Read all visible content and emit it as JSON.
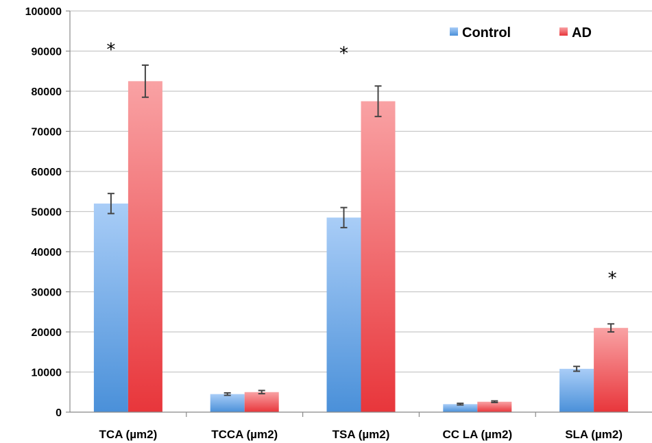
{
  "chart_data": {
    "type": "bar",
    "title": "",
    "xlabel": "",
    "ylabel": "",
    "ylim": [
      0,
      100000
    ],
    "yticks": [
      0,
      10000,
      20000,
      30000,
      40000,
      50000,
      60000,
      70000,
      80000,
      90000,
      100000
    ],
    "yticklabels": [
      "0",
      "10000",
      "20000",
      "30000",
      "40000",
      "50000",
      "60000",
      "70000",
      "80000",
      "90000",
      "100000"
    ],
    "grid": "horizontal",
    "legend": "top-right",
    "categories": [
      "TCA (µm2)",
      "TCCA (µm2)",
      "TSA (µm2)",
      "CC LA (µm2)",
      "SLA (µm2)"
    ],
    "series": [
      {
        "name": "Control",
        "color": "#4a90d9",
        "color_light": "#a9cdf7",
        "values": [
          52000,
          4500,
          48500,
          2000,
          10800
        ],
        "errors": [
          2500,
          300,
          2500,
          200,
          600
        ]
      },
      {
        "name": "AD",
        "color": "#e8363b",
        "color_light": "#f9a2a4",
        "values": [
          82500,
          5000,
          77500,
          2600,
          21000
        ],
        "errors": [
          4000,
          400,
          3800,
          200,
          1000
        ]
      }
    ],
    "annotations": [
      {
        "text": "*",
        "category_index": 0,
        "y": 92000
      },
      {
        "text": "*",
        "category_index": 2,
        "y": 91000
      },
      {
        "text": "*",
        "category_index": 4,
        "y": 35000
      }
    ]
  }
}
